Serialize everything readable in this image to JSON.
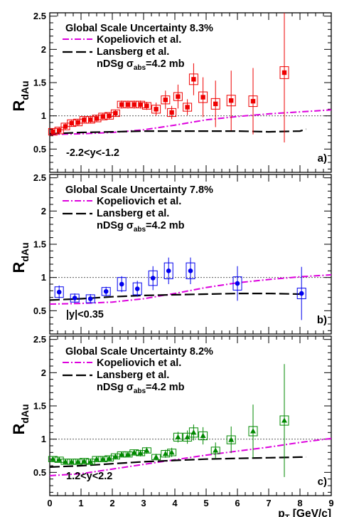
{
  "colors": {
    "kopeliovich": "#dd00dd",
    "lansberg": "#000000",
    "ref_line": "#444444",
    "frame": "#000000"
  },
  "chart_data": [
    {
      "type": "scatter",
      "panel_label": "a)",
      "rapidity_label": "-2.2<y<-1.2",
      "global_scale_uncertainty": "Global Scale Uncertainty 8.3%",
      "ylabel": "R",
      "ylabel_sub": "dAu",
      "xlabel": "",
      "xlim": [
        0,
        9
      ],
      "ylim": [
        0.15,
        2.55
      ],
      "yticks": [
        "0.5",
        "1",
        "1.5",
        "2",
        "2.5"
      ],
      "xticks": [],
      "reference_line": 1,
      "legend": {
        "kopeliovich": "Kopeliovich et al.",
        "lansberg": "Lansberg et al.",
        "nds_prefix": "nDSg σ",
        "nds_sub": "abs",
        "nds_suffix": "=4.2 mb"
      },
      "series": [
        {
          "name": "Data",
          "marker": "square",
          "color": "#ee0000",
          "points": [
            {
              "x": 0.1,
              "y": 0.76,
              "err": 0.05,
              "sys": 0.05
            },
            {
              "x": 0.3,
              "y": 0.78,
              "err": 0.05,
              "sys": 0.05
            },
            {
              "x": 0.5,
              "y": 0.84,
              "err": 0.05,
              "sys": 0.05
            },
            {
              "x": 0.7,
              "y": 0.89,
              "err": 0.05,
              "sys": 0.05
            },
            {
              "x": 0.9,
              "y": 0.9,
              "err": 0.05,
              "sys": 0.05
            },
            {
              "x": 1.1,
              "y": 0.94,
              "err": 0.05,
              "sys": 0.05
            },
            {
              "x": 1.3,
              "y": 0.94,
              "err": 0.05,
              "sys": 0.05
            },
            {
              "x": 1.5,
              "y": 0.96,
              "err": 0.05,
              "sys": 0.05
            },
            {
              "x": 1.7,
              "y": 0.99,
              "err": 0.05,
              "sys": 0.05
            },
            {
              "x": 1.9,
              "y": 1.0,
              "err": 0.05,
              "sys": 0.05
            },
            {
              "x": 2.1,
              "y": 1.04,
              "err": 0.05,
              "sys": 0.05
            },
            {
              "x": 2.3,
              "y": 1.17,
              "err": 0.06,
              "sys": 0.05
            },
            {
              "x": 2.5,
              "y": 1.17,
              "err": 0.06,
              "sys": 0.05
            },
            {
              "x": 2.7,
              "y": 1.17,
              "err": 0.06,
              "sys": 0.05
            },
            {
              "x": 2.9,
              "y": 1.17,
              "err": 0.06,
              "sys": 0.05
            },
            {
              "x": 3.1,
              "y": 1.15,
              "err": 0.06,
              "sys": 0.05
            },
            {
              "x": 3.4,
              "y": 1.1,
              "err": 0.1,
              "sys": 0.06
            },
            {
              "x": 3.7,
              "y": 1.24,
              "err": 0.14,
              "sys": 0.06
            },
            {
              "x": 3.9,
              "y": 1.05,
              "err": 0.1,
              "sys": 0.06
            },
            {
              "x": 4.1,
              "y": 1.29,
              "err": 0.18,
              "sys": 0.06
            },
            {
              "x": 4.4,
              "y": 1.13,
              "err": 0.12,
              "sys": 0.06
            },
            {
              "x": 4.6,
              "y": 1.55,
              "err": 0.24,
              "sys": 0.08
            },
            {
              "x": 4.9,
              "y": 1.28,
              "err": 0.3,
              "sys": 0.08
            },
            {
              "x": 5.3,
              "y": 1.18,
              "err": 0.35,
              "sys": 0.08
            },
            {
              "x": 5.8,
              "y": 1.23,
              "err": 0.45,
              "sys": 0.08
            },
            {
              "x": 6.5,
              "y": 1.22,
              "err": 0.5,
              "sys": 0.08
            },
            {
              "x": 7.5,
              "y": 1.65,
              "err": 1.05,
              "sys": 0.09
            }
          ]
        }
      ],
      "curves": {
        "kopeliovich": {
          "x": [
            0,
            1,
            2,
            3,
            4,
            5,
            6,
            7,
            8,
            9
          ],
          "y": [
            0.72,
            0.73,
            0.75,
            0.79,
            0.86,
            0.94,
            0.99,
            1.03,
            1.06,
            1.09
          ]
        },
        "lansberg": {
          "x": [
            0,
            1,
            2,
            3,
            4,
            5,
            6,
            7,
            8,
            8.2
          ],
          "y": [
            0.73,
            0.75,
            0.76,
            0.77,
            0.77,
            0.77,
            0.77,
            0.76,
            0.77,
            0.8
          ]
        }
      }
    },
    {
      "type": "scatter",
      "panel_label": "b)",
      "rapidity_label": "|y|<0.35",
      "global_scale_uncertainty": "Global Scale Uncertainty 7.8%",
      "ylabel": "R",
      "ylabel_sub": "dAu",
      "xlabel": "",
      "xlim": [
        0,
        9
      ],
      "ylim": [
        0.15,
        2.55
      ],
      "yticks": [
        "0.5",
        "1",
        "1.5",
        "2",
        "2.5"
      ],
      "xticks": [],
      "reference_line": 1,
      "legend": {
        "kopeliovich": "Kopeliovich et al.",
        "lansberg": "Lansberg et al.",
        "nds_prefix": "nDSg σ",
        "nds_sub": "abs",
        "nds_suffix": "=4.2 mb"
      },
      "series": [
        {
          "name": "Data",
          "marker": "circle",
          "color": "#0000ee",
          "points": [
            {
              "x": 0.3,
              "y": 0.78,
              "err": 0.1,
              "sys": 0.08
            },
            {
              "x": 0.8,
              "y": 0.69,
              "err": 0.07,
              "sys": 0.06
            },
            {
              "x": 1.3,
              "y": 0.68,
              "err": 0.07,
              "sys": 0.06
            },
            {
              "x": 1.8,
              "y": 0.79,
              "err": 0.07,
              "sys": 0.06
            },
            {
              "x": 2.3,
              "y": 0.9,
              "err": 0.12,
              "sys": 0.1
            },
            {
              "x": 2.8,
              "y": 0.83,
              "err": 0.12,
              "sys": 0.09
            },
            {
              "x": 3.3,
              "y": 0.99,
              "err": 0.18,
              "sys": 0.11
            },
            {
              "x": 3.8,
              "y": 1.1,
              "err": 0.2,
              "sys": 0.12
            },
            {
              "x": 4.5,
              "y": 1.1,
              "err": 0.2,
              "sys": 0.12
            },
            {
              "x": 6.0,
              "y": 0.91,
              "err": 0.26,
              "sys": 0.1
            },
            {
              "x": 8.05,
              "y": 0.76,
              "err": 0.4,
              "sys": 0.08
            }
          ]
        }
      ],
      "curves": {
        "kopeliovich": {
          "x": [
            0,
            1,
            2,
            3,
            4,
            5,
            6,
            7,
            8,
            9
          ],
          "y": [
            0.6,
            0.61,
            0.63,
            0.68,
            0.76,
            0.85,
            0.92,
            0.97,
            1.01,
            1.04
          ]
        },
        "lansberg": {
          "x": [
            0,
            1,
            2,
            3,
            4,
            5,
            6,
            7,
            8,
            8.2
          ],
          "y": [
            0.66,
            0.68,
            0.71,
            0.73,
            0.74,
            0.75,
            0.76,
            0.76,
            0.75,
            0.74
          ]
        }
      }
    },
    {
      "type": "scatter",
      "panel_label": "c)",
      "rapidity_label": "1.2<y<2.2",
      "global_scale_uncertainty": "Global Scale Uncertainty 8.2%",
      "ylabel": "R",
      "ylabel_sub": "dAu",
      "xlabel": "p",
      "xlabel_sub": "T",
      "xlabel_suffix": " [GeV/c]",
      "xlim": [
        0,
        9
      ],
      "ylim": [
        0.15,
        2.55
      ],
      "yticks": [
        "0.5",
        "1",
        "1.5",
        "2",
        "2.5"
      ],
      "xticks": [
        "0",
        "1",
        "2",
        "3",
        "4",
        "5",
        "6",
        "7",
        "8",
        "9"
      ],
      "reference_line": 1,
      "legend": {
        "kopeliovich": "Kopeliovich et al.",
        "lansberg": "Lansberg et al.",
        "nds_prefix": "nDSg σ",
        "nds_sub": "abs",
        "nds_suffix": "=4.2 mb"
      },
      "series": [
        {
          "name": "Data",
          "marker": "triangle",
          "color": "#008800",
          "points": [
            {
              "x": 0.1,
              "y": 0.7,
              "err": 0.04,
              "sys": 0.04
            },
            {
              "x": 0.3,
              "y": 0.69,
              "err": 0.04,
              "sys": 0.04
            },
            {
              "x": 0.5,
              "y": 0.66,
              "err": 0.04,
              "sys": 0.04
            },
            {
              "x": 0.7,
              "y": 0.66,
              "err": 0.04,
              "sys": 0.04
            },
            {
              "x": 0.9,
              "y": 0.66,
              "err": 0.04,
              "sys": 0.04
            },
            {
              "x": 1.1,
              "y": 0.67,
              "err": 0.04,
              "sys": 0.04
            },
            {
              "x": 1.3,
              "y": 0.66,
              "err": 0.04,
              "sys": 0.04
            },
            {
              "x": 1.5,
              "y": 0.7,
              "err": 0.04,
              "sys": 0.04
            },
            {
              "x": 1.7,
              "y": 0.7,
              "err": 0.04,
              "sys": 0.04
            },
            {
              "x": 1.9,
              "y": 0.71,
              "err": 0.04,
              "sys": 0.04
            },
            {
              "x": 2.1,
              "y": 0.74,
              "err": 0.04,
              "sys": 0.04
            },
            {
              "x": 2.3,
              "y": 0.77,
              "err": 0.04,
              "sys": 0.04
            },
            {
              "x": 2.5,
              "y": 0.77,
              "err": 0.04,
              "sys": 0.04
            },
            {
              "x": 2.7,
              "y": 0.8,
              "err": 0.04,
              "sys": 0.04
            },
            {
              "x": 2.9,
              "y": 0.79,
              "err": 0.05,
              "sys": 0.04
            },
            {
              "x": 3.1,
              "y": 0.83,
              "err": 0.05,
              "sys": 0.04
            },
            {
              "x": 3.4,
              "y": 0.73,
              "err": 0.05,
              "sys": 0.04
            },
            {
              "x": 3.7,
              "y": 0.78,
              "err": 0.06,
              "sys": 0.05
            },
            {
              "x": 3.9,
              "y": 0.8,
              "err": 0.07,
              "sys": 0.05
            },
            {
              "x": 4.1,
              "y": 1.03,
              "err": 0.08,
              "sys": 0.06
            },
            {
              "x": 4.4,
              "y": 1.03,
              "err": 0.1,
              "sys": 0.06
            },
            {
              "x": 4.6,
              "y": 1.1,
              "err": 0.12,
              "sys": 0.07
            },
            {
              "x": 4.9,
              "y": 1.05,
              "err": 0.13,
              "sys": 0.06
            },
            {
              "x": 5.3,
              "y": 0.83,
              "err": 0.12,
              "sys": 0.05
            },
            {
              "x": 5.8,
              "y": 0.99,
              "err": 0.2,
              "sys": 0.06
            },
            {
              "x": 6.5,
              "y": 1.12,
              "err": 0.4,
              "sys": 0.07
            },
            {
              "x": 7.5,
              "y": 1.28,
              "err": 0.85,
              "sys": 0.07
            }
          ]
        }
      ],
      "curves": {
        "kopeliovich": {
          "x": [
            0,
            1,
            2,
            3,
            4,
            5,
            6,
            7,
            8,
            9
          ],
          "y": [
            0.45,
            0.48,
            0.55,
            0.62,
            0.69,
            0.76,
            0.82,
            0.88,
            0.95,
            1.01
          ]
        },
        "lansberg": {
          "x": [
            0,
            1,
            2,
            3,
            4,
            5,
            6,
            7,
            8,
            8.2
          ],
          "y": [
            0.58,
            0.6,
            0.63,
            0.66,
            0.68,
            0.7,
            0.71,
            0.72,
            0.73,
            0.73
          ]
        }
      }
    }
  ]
}
